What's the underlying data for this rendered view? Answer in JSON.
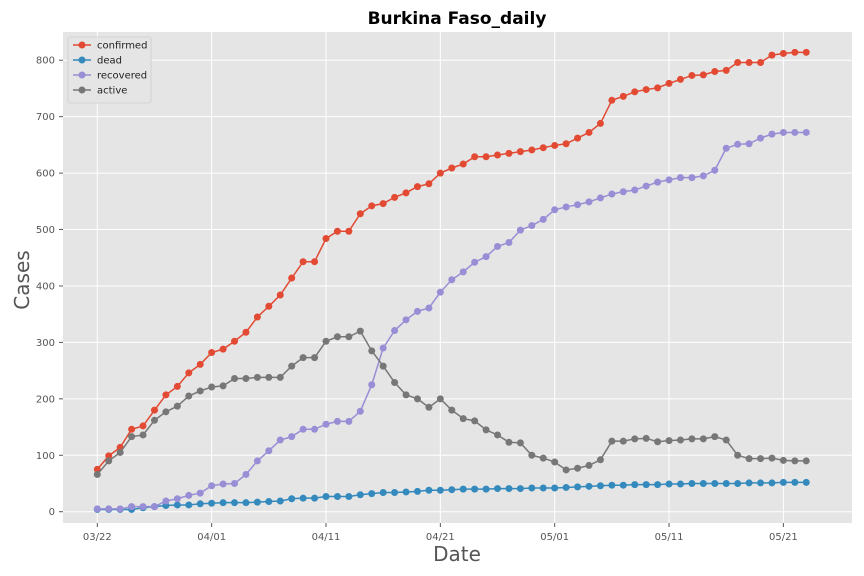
{
  "chart_data": {
    "type": "line",
    "title": "Burkina Faso_daily",
    "xlabel": "Date",
    "ylabel": "Cases",
    "start_date": "2020-03-22",
    "x_ticks": [
      {
        "day": 0,
        "label": "03/22"
      },
      {
        "day": 10,
        "label": "04/01"
      },
      {
        "day": 20,
        "label": "04/11"
      },
      {
        "day": 30,
        "label": "04/21"
      },
      {
        "day": 40,
        "label": "05/01"
      },
      {
        "day": 50,
        "label": "05/11"
      },
      {
        "day": 60,
        "label": "05/21"
      }
    ],
    "y_ticks": [
      0,
      100,
      200,
      300,
      400,
      500,
      600,
      700,
      800
    ],
    "ylim": [
      -20,
      850
    ],
    "xlim": [
      -3,
      66
    ],
    "grid": true,
    "legend_position": "top-left",
    "series": [
      {
        "name": "confirmed",
        "color": "#E24A33",
        "values": [
          75,
          99,
          114,
          146,
          152,
          180,
          207,
          222,
          246,
          261,
          282,
          288,
          302,
          318,
          345,
          364,
          384,
          414,
          443,
          443,
          484,
          497,
          497,
          528,
          542,
          546,
          557,
          565,
          576,
          581,
          600,
          609,
          616,
          629,
          629,
          632,
          635,
          638,
          641,
          645,
          649,
          652,
          662,
          672,
          688,
          729,
          736,
          744,
          748,
          751,
          759,
          766,
          773,
          774,
          780,
          782,
          796,
          796,
          796,
          809,
          812,
          814,
          814
        ]
      },
      {
        "name": "dead",
        "color": "#348ABD",
        "values": [
          4,
          4,
          4,
          4,
          7,
          9,
          11,
          12,
          12,
          14,
          15,
          16,
          16,
          16,
          17,
          18,
          19,
          23,
          24,
          24,
          27,
          27,
          27,
          30,
          32,
          34,
          34,
          35,
          36,
          38,
          38,
          39,
          40,
          40,
          40,
          41,
          41,
          41,
          42,
          42,
          42,
          43,
          44,
          45,
          46,
          47,
          47,
          48,
          48,
          48,
          49,
          49,
          50,
          50,
          50,
          50,
          50,
          51,
          51,
          51,
          52,
          52,
          52
        ]
      },
      {
        "name": "recovered",
        "color": "#988ED5",
        "values": [
          5,
          5,
          5,
          9,
          9,
          9,
          19,
          23,
          29,
          33,
          46,
          49,
          50,
          66,
          90,
          108,
          127,
          133,
          146,
          146,
          155,
          160,
          160,
          178,
          225,
          290,
          321,
          340,
          355,
          361,
          389,
          411,
          425,
          442,
          452,
          470,
          477,
          499,
          507,
          518,
          535,
          540,
          544,
          549,
          556,
          563,
          567,
          570,
          577,
          584,
          588,
          592,
          592,
          595,
          605,
          644,
          651,
          652,
          662,
          669,
          672,
          672,
          672
        ]
      },
      {
        "name": "active",
        "color": "#777777",
        "values": [
          66,
          90,
          105,
          133,
          136,
          162,
          177,
          187,
          205,
          214,
          221,
          223,
          236,
          236,
          238,
          238,
          238,
          258,
          273,
          273,
          302,
          310,
          310,
          320,
          285,
          258,
          229,
          207,
          200,
          185,
          200,
          180,
          165,
          161,
          145,
          136,
          123,
          122,
          100,
          95,
          88,
          74,
          77,
          82,
          92,
          125,
          125,
          129,
          130,
          124,
          126,
          127,
          129,
          129,
          133,
          127,
          100,
          94,
          94,
          95,
          91,
          90,
          90
        ]
      }
    ]
  }
}
